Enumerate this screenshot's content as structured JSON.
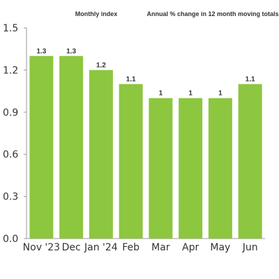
{
  "chart_data": {
    "type": "bar",
    "title": "Monthly index",
    "subtitle": "Annual % change in 12 month moving totals",
    "categories": [
      "Nov '23",
      "Dec",
      "Jan '24",
      "Feb",
      "Mar",
      "Apr",
      "May",
      "Jun"
    ],
    "values": [
      1.3,
      1.3,
      1.2,
      1.1,
      1.0,
      1.0,
      1.0,
      1.1
    ],
    "data_labels": [
      "1.3",
      "1.3",
      "1.2",
      "1.1",
      "1",
      "1",
      "1",
      "1.1"
    ],
    "y_ticks": [
      "0.0",
      "0.3",
      "0.6",
      "0.9",
      "1.2",
      "1.5"
    ],
    "ylim": [
      0,
      1.5
    ],
    "xlabel": "",
    "ylabel": "",
    "grid": false,
    "legend": "none",
    "colors": {
      "bar": "#8dc63f",
      "axis": "#999999",
      "text": "#333333"
    }
  }
}
